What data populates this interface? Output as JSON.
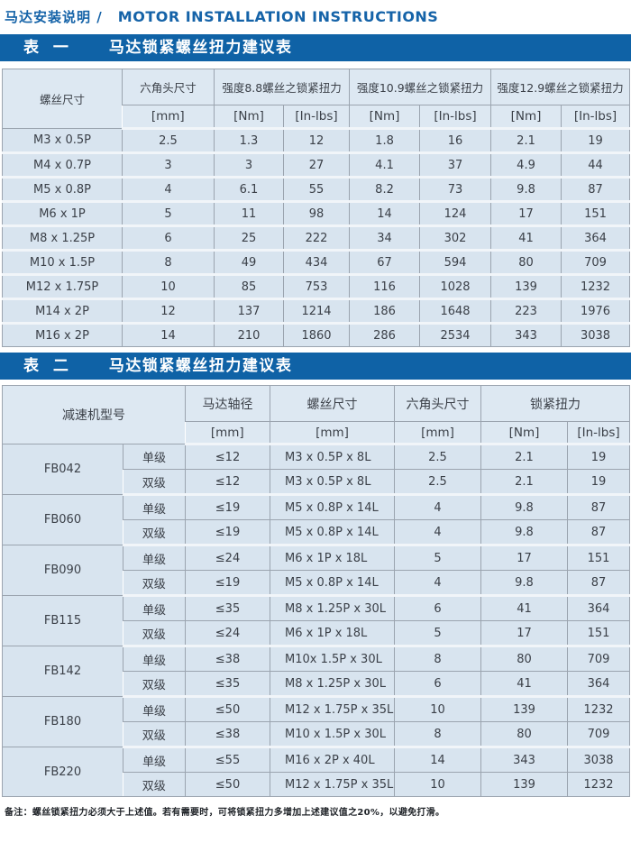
{
  "page": {
    "title_zh": "马达安装说明 /",
    "title_en": "MOTOR INSTALLATION INSTRUCTIONS",
    "footnote": "备注：螺丝锁紧扭力必须大于上述值。若有需要时，可将锁紧扭力多增加上述建议值之20%，以避免打滑。",
    "colors": {
      "banner_bg": "#0f62a6",
      "banner_text": "#ffffff",
      "title_blue": "#1563a8",
      "header_cell_bg": "#dde8f2",
      "data_cell_bg": "#d8e4ef",
      "grid_line": "#9ba4af"
    }
  },
  "table1": {
    "band_label": "表 一",
    "band_title": "马达锁紧螺丝扭力建议表",
    "header": {
      "screw_size": "螺丝尺寸",
      "hex_head": "六角头尺寸",
      "grade88": "强度8.8螺丝之锁紧扭力",
      "grade109": "强度10.9螺丝之锁紧扭力",
      "grade129": "强度12.9螺丝之锁紧扭力",
      "unit_mm": "[mm]",
      "unit_nm1": "[Nm]",
      "unit_inlbs1": "[In-lbs]",
      "unit_nm2": "[Nm]",
      "unit_inlbs2": "[In-lbs]",
      "unit_nm3": "[Nm]",
      "unit_inlbs3": "[In-lbs]"
    },
    "rows": [
      [
        "M3 x 0.5P",
        "2.5",
        "1.3",
        "12",
        "1.8",
        "16",
        "2.1",
        "19"
      ],
      [
        "M4 x 0.7P",
        "3",
        "3",
        "27",
        "4.1",
        "37",
        "4.9",
        "44"
      ],
      [
        "M5 x 0.8P",
        "4",
        "6.1",
        "55",
        "8.2",
        "73",
        "9.8",
        "87"
      ],
      [
        "M6 x 1P",
        "5",
        "11",
        "98",
        "14",
        "124",
        "17",
        "151"
      ],
      [
        "M8 x 1.25P",
        "6",
        "25",
        "222",
        "34",
        "302",
        "41",
        "364"
      ],
      [
        "M10 x 1.5P",
        "8",
        "49",
        "434",
        "67",
        "594",
        "80",
        "709"
      ],
      [
        "M12 x 1.75P",
        "10",
        "85",
        "753",
        "116",
        "1028",
        "139",
        "1232"
      ],
      [
        "M14 x 2P",
        "12",
        "137",
        "1214",
        "186",
        "1648",
        "223",
        "1976"
      ],
      [
        "M16 x 2P",
        "14",
        "210",
        "1860",
        "286",
        "2534",
        "343",
        "3038"
      ]
    ]
  },
  "table2": {
    "band_label": "表 二",
    "band_title": "马达锁紧螺丝扭力建议表",
    "header": {
      "model": "减速机型号",
      "shaft": "马达轴径",
      "screw": "螺丝尺寸",
      "hex_head": "六角头尺寸",
      "torque": "锁紧扭力",
      "unit_shaft": "[mm]",
      "unit_screw": "[mm]",
      "unit_hex": "[mm]",
      "unit_nm": "[Nm]",
      "unit_inlbs": "[In-lbs]"
    },
    "groups": [
      {
        "model": "FB042",
        "rows": [
          [
            "单级",
            "≤12",
            "M3 x 0.5P x 8L",
            "2.5",
            "2.1",
            "19"
          ],
          [
            "双级",
            "≤12",
            "M3 x 0.5P x 8L",
            "2.5",
            "2.1",
            "19"
          ]
        ]
      },
      {
        "model": "FB060",
        "rows": [
          [
            "单级",
            "≤19",
            "M5 x 0.8P x 14L",
            "4",
            "9.8",
            "87"
          ],
          [
            "双级",
            "≤19",
            "M5 x 0.8P x 14L",
            "4",
            "9.8",
            "87"
          ]
        ]
      },
      {
        "model": "FB090",
        "rows": [
          [
            "单级",
            "≤24",
            "M6 x 1P x 18L",
            "5",
            "17",
            "151"
          ],
          [
            "双级",
            "≤19",
            "M5 x 0.8P x 14L",
            "4",
            "9.8",
            "87"
          ]
        ]
      },
      {
        "model": "FB115",
        "rows": [
          [
            "单级",
            "≤35",
            "M8 x 1.25P x 30L",
            "6",
            "41",
            "364"
          ],
          [
            "双级",
            "≤24",
            "M6 x 1P x 18L",
            "5",
            "17",
            "151"
          ]
        ]
      },
      {
        "model": "FB142",
        "rows": [
          [
            "单级",
            "≤38",
            "M10x 1.5P x 30L",
            "8",
            "80",
            "709"
          ],
          [
            "双级",
            "≤35",
            "M8 x 1.25P x 30L",
            "6",
            "41",
            "364"
          ]
        ]
      },
      {
        "model": "FB180",
        "rows": [
          [
            "单级",
            "≤50",
            "M12 x 1.75P x 35L",
            "10",
            "139",
            "1232"
          ],
          [
            "双级",
            "≤38",
            "M10 x 1.5P x 30L",
            "8",
            "80",
            "709"
          ]
        ]
      },
      {
        "model": "FB220",
        "rows": [
          [
            "单级",
            "≤55",
            "M16 x 2P x 40L",
            "14",
            "343",
            "3038"
          ],
          [
            "双级",
            "≤50",
            "M12 x 1.75P x 35L",
            "10",
            "139",
            "1232"
          ]
        ]
      }
    ]
  }
}
